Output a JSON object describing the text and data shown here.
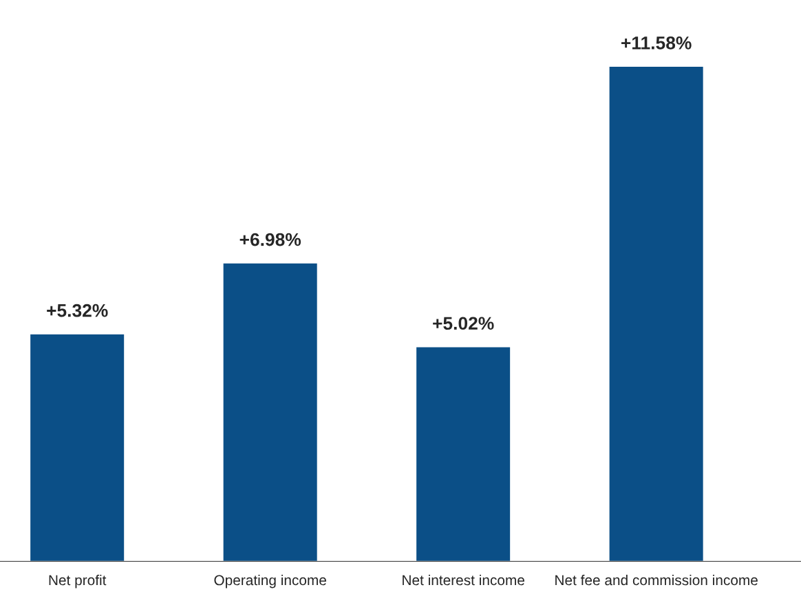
{
  "chart_data": {
    "type": "bar",
    "categories": [
      "Net profit",
      "Operating income",
      "Net interest income",
      "Net fee and commission income"
    ],
    "values": [
      5.32,
      6.98,
      5.02,
      11.58
    ],
    "value_labels": [
      "+5.32%",
      "+6.98%",
      "+5.02%",
      "+11.58%"
    ],
    "color": "#0b4f87",
    "grid": false,
    "legend": false
  }
}
